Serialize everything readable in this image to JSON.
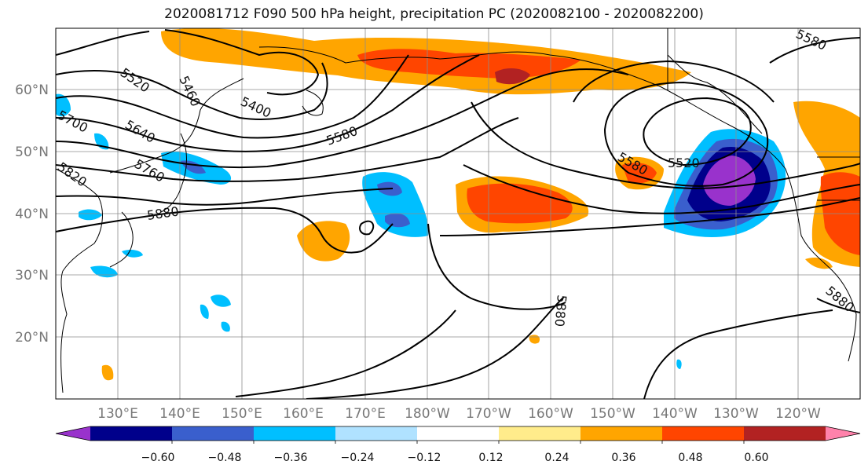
{
  "title": "2020081712 F090 500 hPa height, precipitation PC (2020082100 - 2020082200)",
  "lat_labels": [
    "60°N",
    "50°N",
    "40°N",
    "30°N",
    "20°N"
  ],
  "lon_labels": [
    "130°E",
    "140°E",
    "150°E",
    "160°E",
    "170°E",
    "180°W",
    "170°W",
    "160°W",
    "150°W",
    "140°W",
    "130°W",
    "120°W"
  ],
  "contour_labels": [
    "5520",
    "5460",
    "5400",
    "5580",
    "5640",
    "5700",
    "5760",
    "5820",
    "5880",
    "5580",
    "5520",
    "5880",
    "5880",
    "5580"
  ],
  "colorbar": {
    "colors": [
      "#9932CC",
      "#00008B",
      "#3A5FCD",
      "#00BFFF",
      "#B0E2FF",
      "#FFFFFF",
      "#FFEC8B",
      "#FFA500",
      "#FF4500",
      "#B22222",
      "#FF82AB"
    ],
    "labels": [
      "−0.60",
      "−0.48",
      "−0.36",
      "−0.24",
      "−0.12",
      "0.12",
      "0.24",
      "0.36",
      "0.48",
      "0.60"
    ]
  }
}
